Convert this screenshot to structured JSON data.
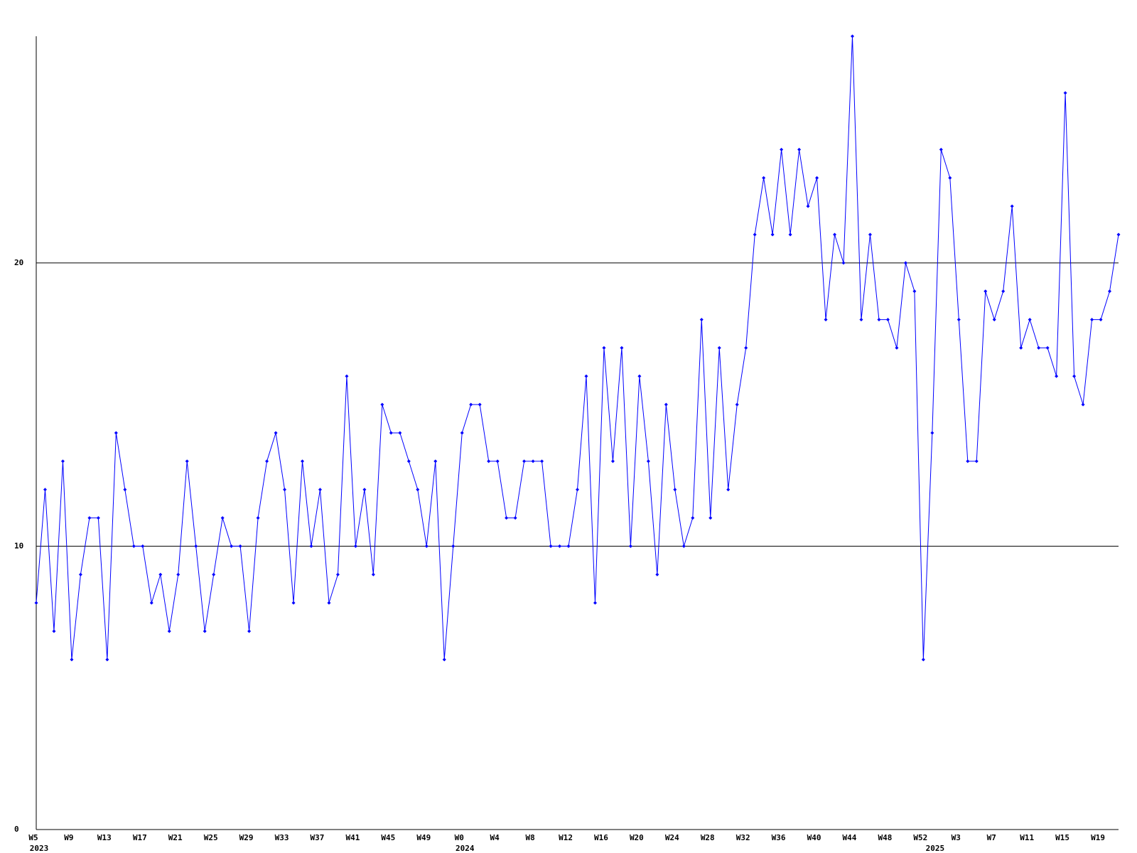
{
  "chart_data": {
    "type": "line",
    "categories": [
      "W5",
      null,
      null,
      null,
      "W9",
      null,
      null,
      null,
      "W13",
      null,
      null,
      null,
      "W17",
      null,
      null,
      null,
      "W21",
      null,
      null,
      null,
      "W25",
      null,
      null,
      null,
      "W29",
      null,
      null,
      null,
      "W33",
      null,
      null,
      null,
      "W37",
      null,
      null,
      null,
      "W41",
      null,
      null,
      null,
      "W45",
      null,
      null,
      null,
      "W49",
      null,
      null,
      null,
      "W0",
      null,
      null,
      null,
      "W4",
      null,
      null,
      null,
      "W8",
      null,
      null,
      null,
      "W12",
      null,
      null,
      null,
      "W16",
      null,
      null,
      null,
      "W20",
      null,
      null,
      null,
      "W24",
      null,
      null,
      null,
      "W28",
      null,
      null,
      null,
      "W32",
      null,
      null,
      null,
      "W36",
      null,
      null,
      null,
      "W40",
      null,
      null,
      null,
      "W44",
      null,
      null,
      null,
      "W48",
      null,
      null,
      null,
      "W52",
      null,
      null,
      null,
      "W3",
      null,
      null,
      null,
      "W7",
      null,
      null,
      null,
      "W11",
      null,
      null,
      null,
      "W15",
      null,
      null,
      null,
      "W19",
      null,
      null
    ],
    "x_groups": [
      {
        "at": 0,
        "label": "2023"
      },
      {
        "at": 48,
        "label": "2024"
      },
      {
        "at": 101,
        "label": "2025"
      }
    ],
    "series": [
      {
        "color": "#0000ff",
        "values": [
          8,
          12,
          7,
          13,
          6,
          9,
          11,
          11,
          6,
          14,
          12,
          10,
          10,
          8,
          9,
          7,
          9,
          13,
          10,
          7,
          9,
          11,
          10,
          10,
          7,
          11,
          13,
          14,
          12,
          8,
          13,
          10,
          12,
          8,
          9,
          16,
          10,
          12,
          9,
          15,
          14,
          14,
          13,
          12,
          10,
          13,
          6,
          10,
          14,
          15,
          15,
          13,
          13,
          11,
          11,
          13,
          13,
          13,
          10,
          10,
          10,
          12,
          16,
          8,
          17,
          13,
          17,
          10,
          16,
          13,
          9,
          15,
          12,
          10,
          11,
          18,
          11,
          17,
          12,
          15,
          17,
          21,
          23,
          21,
          24,
          21,
          24,
          22,
          23,
          18,
          21,
          20,
          28,
          18,
          21,
          18,
          18,
          17,
          20,
          19,
          6,
          14,
          24,
          23,
          18,
          13,
          13,
          19,
          18,
          19,
          22,
          17,
          18,
          17,
          17,
          16,
          26,
          16,
          15,
          18,
          18,
          19,
          21
        ]
      }
    ],
    "ylim": [
      0,
      28
    ],
    "yticks": [
      0,
      10,
      20
    ],
    "grid": true
  }
}
